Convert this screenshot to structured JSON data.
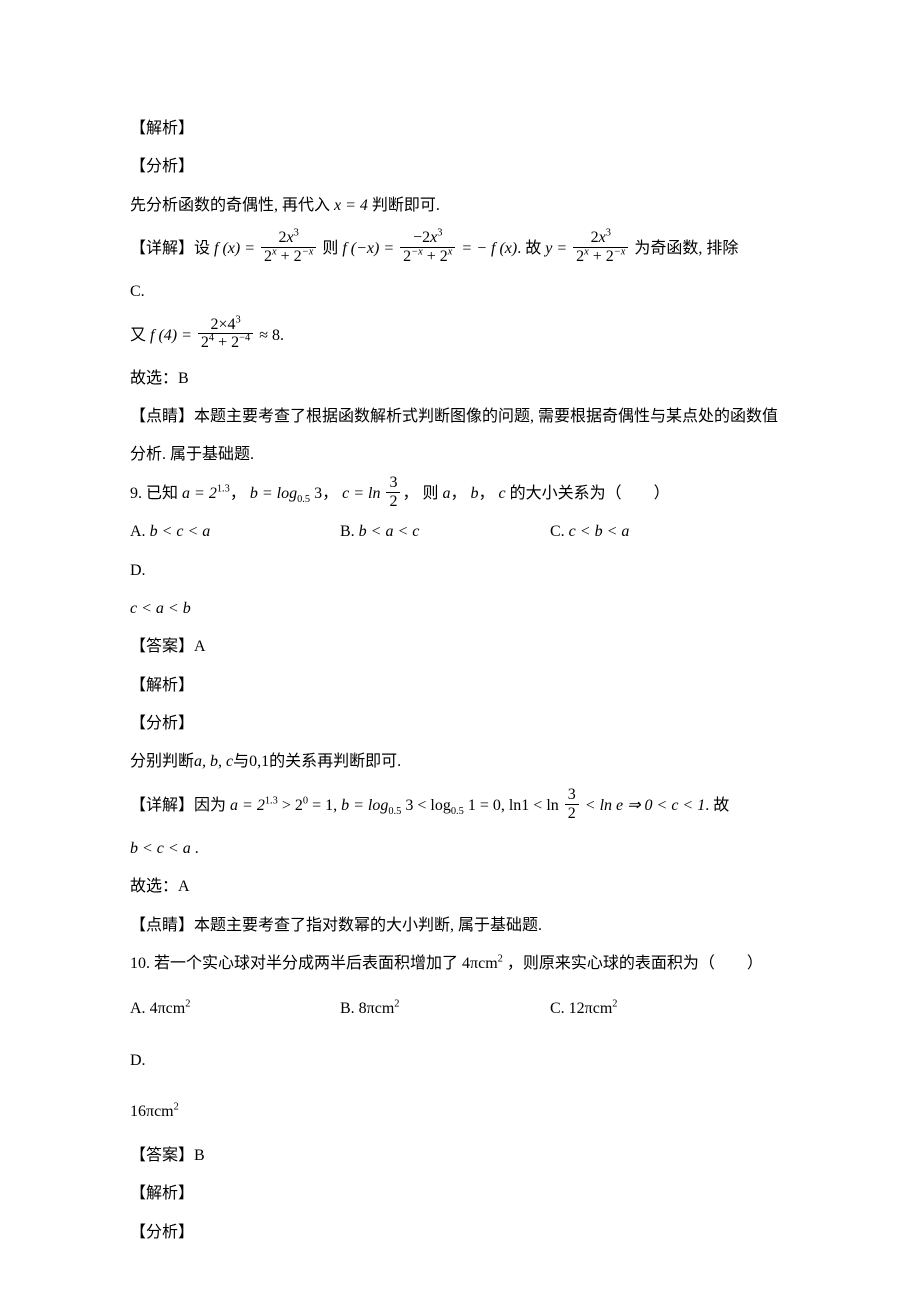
{
  "labels": {
    "analysis": "【解析】",
    "fenxi": "【分析】",
    "detail": "【详解】",
    "dianjing": "【点睛】",
    "answer": "【答案】",
    "guxuan": "故选：",
    "gu": "故"
  },
  "q8": {
    "line1": "先分析函数的奇偶性, 再代入",
    "x4": "x = 4",
    "line1b": "判断即可.",
    "detail_pre": "设",
    "fx_lhs": "f (x) =",
    "fx_num": "2x³",
    "fx_den_l": "2",
    "fx_den_exp1": "x",
    "fx_den_plus": " + 2",
    "fx_den_exp2": "−x",
    "then": "则",
    "fmx_lhs": "f (−x) =",
    "fmx_num": "−2x³",
    "fmx_den_l": "2",
    "fmx_den_exp1": "−x",
    "fmx_den_plus": " + 2",
    "fmx_den_exp2": "x",
    "eq_neg": "= − f (x)",
    "period": ". 故",
    "y_eq": "y =",
    "oddfunc": " 为奇函数, 排除",
    "excludeC": "C.",
    "you": "又",
    "f4_lhs": "f (4) =",
    "f4_num_a": "2×4",
    "f4_num_exp": "3",
    "f4_den_a": "2",
    "f4_den_exp1": "4",
    "f4_den_plus": " + 2",
    "f4_den_exp2": "−4",
    "approx8": "≈ 8",
    "period2": ".",
    "select": "B",
    "dj_text": "本题主要考查了根据函数解析式判断图像的问题, 需要根据奇偶性与某点处的函数值分析. 属于基础题."
  },
  "q9": {
    "num": "9. ",
    "stem1": "已知",
    "a_expr_l": "a = 2",
    "a_exp": "1.3",
    "comma1": "，",
    "b_expr": "b = log",
    "b_sub": "0.5",
    "b_arg": " 3",
    "comma2": "，",
    "c_expr": "c = ln",
    "c_frac_num": "3",
    "c_frac_den": "2",
    "comma3": "，",
    "then_part": "则",
    "a_var": "a",
    "comma4": "，",
    "b_var": "b",
    "comma5": "，",
    "c_var": "c",
    "relation": "的大小关系为（　　）",
    "optA_label": "A.  ",
    "optA": "b < c < a",
    "optB_label": "B.  ",
    "optB": "b < a < c",
    "optC_label": "C.  ",
    "optC": "c < b < a",
    "optD_label": "D.",
    "optD": "c < a < b",
    "answer": "A",
    "fenxi_text1": "分别判断",
    "abc": "a, b, c",
    "fenxi_text2": "与",
    "zeroone": "0,1",
    "fenxi_text3": "的关系再判断即可.",
    "detail_because": "因为",
    "d_a": "a = 2",
    "d_a_exp": "1.3",
    "d_a_gt": " > 2",
    "d_a_exp0": "0",
    "d_a_eq1": " = 1",
    "d_comma": ", ",
    "d_b": "b = log",
    "d_b_sub": "0.5",
    "d_b_arg": " 3 < log",
    "d_b_sub2": "0.5",
    "d_b_eq": " 1 = 0",
    "d_ln": "ln1 < ln",
    "d_frac_num": "3",
    "d_frac_den": "2",
    "d_lne": " < ln e",
    "d_imply": " ⇒ 0 < c < 1",
    "d_period": ". ",
    "conclusion": "b < c < a",
    "conclusion_period": " .",
    "select": "A",
    "dj_text": "本题主要考查了指对数幂的大小判断, 属于基础题."
  },
  "q10": {
    "num": "10. ",
    "stem1": "若一个实心球对半分成两半后表面积增加了",
    "area_inc": "4πcm",
    "sq": "2",
    "stem2": "，则原来实心球的表面积为（　　）",
    "optA_label": "A.  ",
    "optA_v": "4πcm",
    "optB_label": "B.  ",
    "optB_v": "8πcm",
    "optC_label": "C.  ",
    "optC_v": "12πcm",
    "optD_label": "D.",
    "optD_v": "16πcm",
    "answer": "B"
  },
  "style": {
    "text_color": "#000000",
    "bg_color": "#ffffff",
    "base_fontsize": 16
  }
}
